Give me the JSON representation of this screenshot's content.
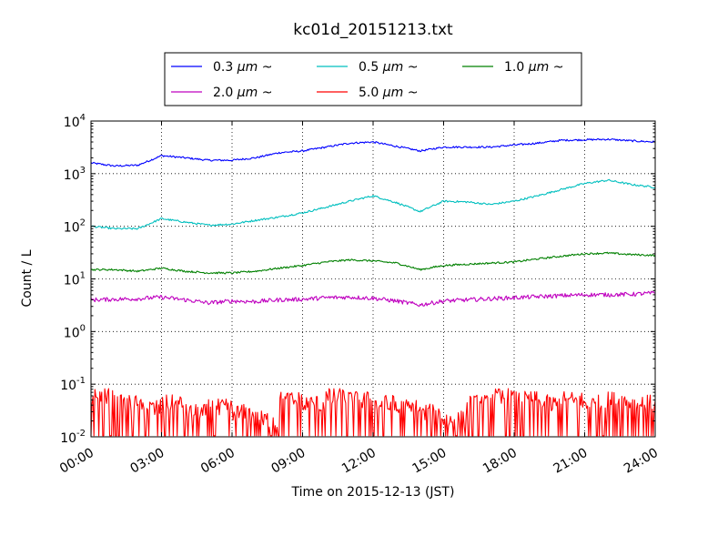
{
  "chart_data": {
    "type": "line",
    "title": "kc01d_20151213.txt",
    "xlabel": "Time on 2015-12-13 (JST)",
    "ylabel": "Count / L",
    "yscale": "log",
    "ylim": [
      0.01,
      10000
    ],
    "xlim": [
      "2015-12-13 00:00",
      "2015-12-14 00:00"
    ],
    "grid": true,
    "legend_position": "top",
    "x_ticks": [
      "00:00",
      "03:00",
      "06:00",
      "09:00",
      "12:00",
      "15:00",
      "18:00",
      "21:00",
      "24:00"
    ],
    "y_ticks": [
      {
        "value": 0.01,
        "base": "10",
        "exp": "-2"
      },
      {
        "value": 0.1,
        "base": "10",
        "exp": "-1"
      },
      {
        "value": 1,
        "base": "10",
        "exp": "0"
      },
      {
        "value": 10,
        "base": "10",
        "exp": "1"
      },
      {
        "value": 100,
        "base": "10",
        "exp": "2"
      },
      {
        "value": 1000,
        "base": "10",
        "exp": "3"
      },
      {
        "value": 10000,
        "base": "10",
        "exp": "4"
      }
    ],
    "x": [
      "00:00",
      "01:00",
      "02:00",
      "03:00",
      "04:00",
      "05:00",
      "06:00",
      "07:00",
      "08:00",
      "09:00",
      "10:00",
      "11:00",
      "12:00",
      "13:00",
      "14:00",
      "15:00",
      "16:00",
      "17:00",
      "18:00",
      "19:00",
      "20:00",
      "21:00",
      "22:00",
      "23:00",
      "24:00"
    ],
    "series": [
      {
        "name_prefix": "0.3 ",
        "unit": "μm",
        "name_suffix": " ~",
        "color": "#0000ff",
        "values": [
          1600,
          1400,
          1450,
          2200,
          2000,
          1800,
          1800,
          2000,
          2500,
          2700,
          3200,
          3800,
          4000,
          3300,
          2700,
          3200,
          3200,
          3200,
          3500,
          3800,
          4300,
          4400,
          4500,
          4200,
          4000
        ]
      },
      {
        "name_prefix": "0.5 ",
        "unit": "μm",
        "name_suffix": " ~",
        "color": "#00bfbf",
        "values": [
          100,
          90,
          90,
          140,
          120,
          105,
          110,
          130,
          150,
          180,
          230,
          300,
          380,
          280,
          190,
          300,
          290,
          260,
          300,
          380,
          500,
          650,
          750,
          620,
          550
        ]
      },
      {
        "name_prefix": "1.0 ",
        "unit": "μm",
        "name_suffix": " ~",
        "color": "#008000",
        "values": [
          15,
          15,
          14,
          16,
          14,
          13,
          13,
          14,
          16,
          18,
          21,
          23,
          22,
          20,
          15,
          18,
          19,
          20,
          21,
          24,
          27,
          30,
          31,
          29,
          28
        ]
      },
      {
        "name_prefix": "2.0 ",
        "unit": "μm",
        "name_suffix": " ~",
        "color": "#bf00bf",
        "values": [
          4.0,
          4.1,
          4.2,
          4.5,
          4.0,
          3.5,
          3.8,
          3.7,
          4.0,
          4.1,
          4.4,
          4.5,
          4.3,
          3.8,
          3.2,
          3.8,
          4.0,
          4.2,
          4.4,
          4.6,
          4.8,
          5.0,
          5.0,
          5.1,
          5.4
        ]
      },
      {
        "name_prefix": "5.0 ",
        "unit": "μm",
        "name_suffix": " ~",
        "color": "#ff0000",
        "values": [
          0.04,
          0.03,
          0.025,
          0.03,
          0.02,
          0.025,
          0.02,
          0.015,
          0.035,
          0.03,
          0.04,
          0.035,
          0.03,
          0.025,
          0.02,
          0.015,
          0.03,
          0.04,
          0.035,
          0.03,
          0.035,
          0.03,
          0.035,
          0.03,
          0.03
        ]
      }
    ]
  }
}
